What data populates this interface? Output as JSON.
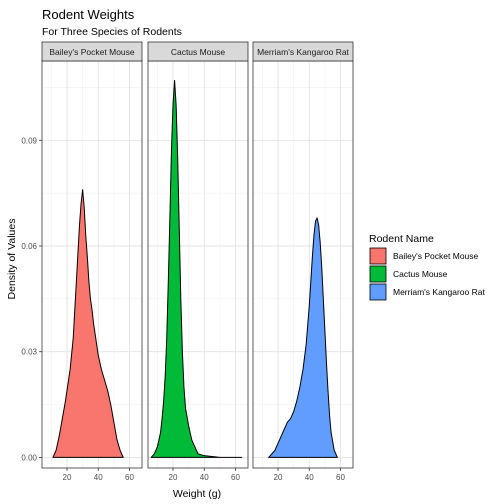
{
  "chart_data": {
    "type": "area",
    "subtype": "density",
    "title": "Rodent Weights",
    "subtitle": "For Three Species of Rodents",
    "xlabel": "Weight (g)",
    "ylabel": "Density of Values",
    "xlim": [
      4,
      68
    ],
    "ylim": [
      -0.003,
      0.1125
    ],
    "x_ticks": [
      20,
      40,
      60
    ],
    "x_tick_labels": [
      "20",
      "40",
      "60"
    ],
    "y_ticks": [
      0,
      0.03,
      0.06,
      0.09
    ],
    "y_tick_labels": [
      "0.00",
      "0.03",
      "0.06",
      "0.09"
    ],
    "grid": true,
    "legend": {
      "title": "Rodent Name",
      "position": "right",
      "entries": [
        "Bailey's Pocket Mouse",
        "Cactus Mouse",
        "Merriam's Kangaroo Rat"
      ]
    },
    "series": [
      {
        "name": "Bailey's Pocket Mouse",
        "color": "#F8766D",
        "x": [
          11,
          13,
          15,
          17,
          19,
          20,
          22,
          24,
          25,
          26,
          27,
          28,
          29,
          30,
          31,
          32,
          33,
          34,
          35,
          36,
          37,
          38,
          39,
          40,
          42,
          44,
          46,
          48,
          50,
          52,
          54,
          56
        ],
        "values": [
          0.0,
          0.002,
          0.006,
          0.011,
          0.016,
          0.019,
          0.025,
          0.034,
          0.042,
          0.05,
          0.058,
          0.066,
          0.072,
          0.076,
          0.071,
          0.063,
          0.057,
          0.05,
          0.045,
          0.042,
          0.038,
          0.035,
          0.032,
          0.029,
          0.025,
          0.022,
          0.019,
          0.015,
          0.01,
          0.005,
          0.002,
          0.0
        ]
      },
      {
        "name": "Cactus Mouse",
        "color": "#00BA38",
        "x": [
          6,
          8,
          10,
          12,
          13,
          14,
          15,
          16,
          17,
          18,
          19,
          20,
          21,
          22,
          23,
          24,
          25,
          26,
          27,
          28,
          30,
          32,
          34,
          36,
          40,
          50,
          60,
          64
        ],
        "values": [
          0.0,
          0.001,
          0.003,
          0.007,
          0.011,
          0.016,
          0.023,
          0.034,
          0.05,
          0.068,
          0.087,
          0.1,
          0.107,
          0.1,
          0.085,
          0.065,
          0.045,
          0.03,
          0.02,
          0.014,
          0.009,
          0.005,
          0.003,
          0.001,
          0.0005,
          0.0,
          0.0,
          0.0
        ]
      },
      {
        "name": "Merriam's Kangaroo Rat",
        "color": "#619CFF",
        "x": [
          14,
          18,
          20,
          22,
          24,
          26,
          28,
          30,
          32,
          34,
          36,
          38,
          40,
          41,
          42,
          43,
          44,
          45,
          46,
          47,
          48,
          49,
          50,
          51,
          52,
          53,
          54,
          56,
          58
        ],
        "values": [
          0.0,
          0.002,
          0.004,
          0.006,
          0.008,
          0.01,
          0.011,
          0.013,
          0.016,
          0.02,
          0.025,
          0.032,
          0.043,
          0.05,
          0.057,
          0.063,
          0.067,
          0.068,
          0.066,
          0.061,
          0.054,
          0.045,
          0.036,
          0.027,
          0.019,
          0.012,
          0.007,
          0.002,
          0.0
        ]
      }
    ]
  }
}
